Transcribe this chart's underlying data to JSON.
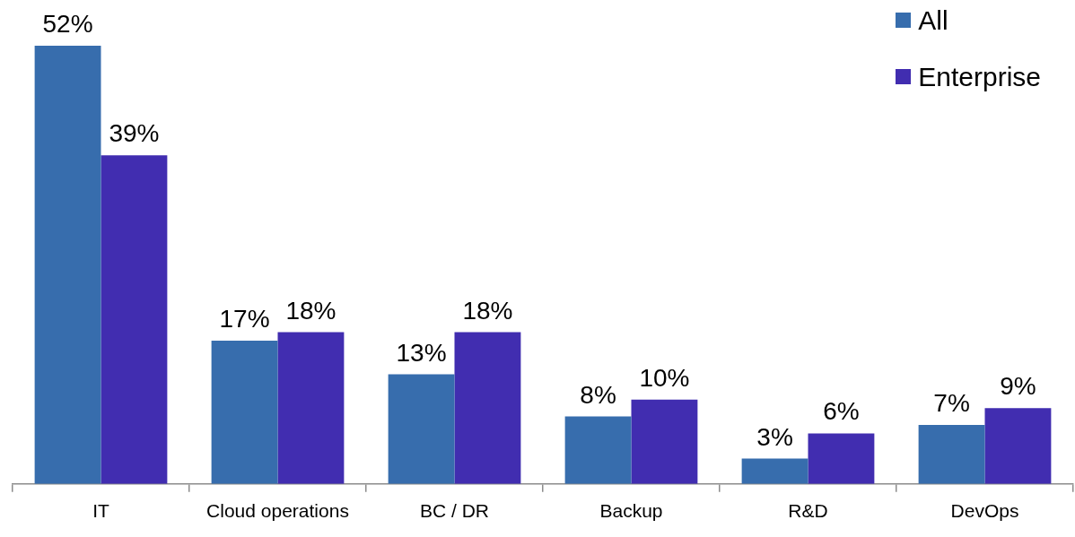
{
  "chart_data": {
    "type": "bar",
    "categories": [
      "IT",
      "Cloud operations",
      "BC / DR",
      "Backup",
      "R&D",
      "DevOps"
    ],
    "series": [
      {
        "name": "All",
        "color": "#376dad",
        "values": [
          52,
          17,
          13,
          8,
          3,
          7
        ],
        "value_labels": [
          "52%",
          "17%",
          "13%",
          "8%",
          "3%",
          "7%"
        ]
      },
      {
        "name": "Enterprise",
        "color": "#412db0",
        "values": [
          39,
          18,
          18,
          10,
          6,
          9
        ],
        "value_labels": [
          "39%",
          "18%",
          "18%",
          "10%",
          "6%",
          "9%"
        ]
      }
    ],
    "legend": "top right"
  }
}
